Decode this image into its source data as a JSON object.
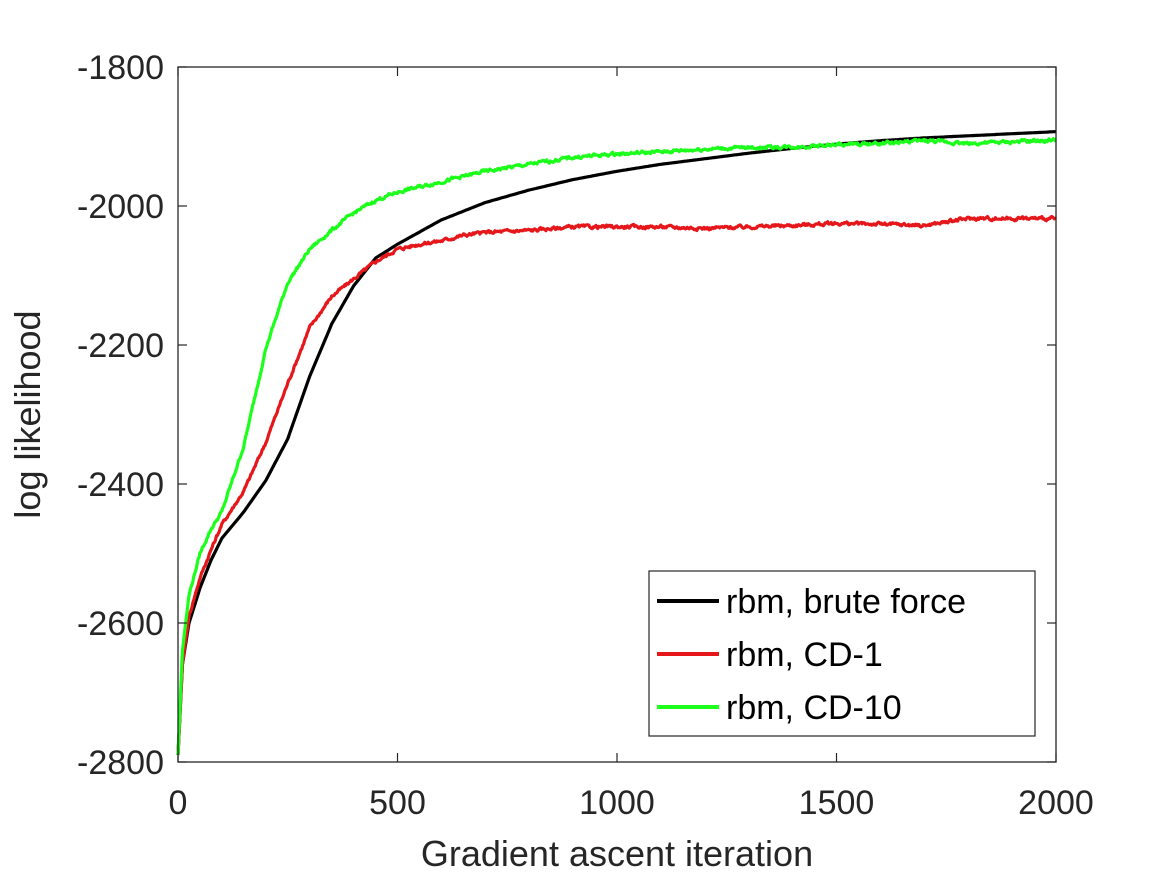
{
  "chart_data": {
    "type": "line",
    "title": "",
    "xlabel": "Gradient ascent iteration",
    "ylabel": "log likelihood",
    "xlim": [
      0,
      2000
    ],
    "ylim": [
      -2800,
      -1800
    ],
    "xticks": [
      0,
      500,
      1000,
      1500,
      2000
    ],
    "yticks": [
      -2800,
      -2600,
      -2400,
      -2200,
      -2000,
      -1800
    ],
    "xtick_labels": [
      "0",
      "500",
      "1000",
      "1500",
      "2000"
    ],
    "ytick_labels": [
      "-2800",
      "-2600",
      "-2400",
      "-2200",
      "-2000",
      "-1800"
    ],
    "grid": false,
    "legend": {
      "placement": "bottom-right"
    },
    "series": [
      {
        "name": "rbm, brute force",
        "color": "#000000",
        "noise": false,
        "points": [
          [
            0,
            -2790
          ],
          [
            10,
            -2660
          ],
          [
            25,
            -2600
          ],
          [
            50,
            -2550
          ],
          [
            75,
            -2510
          ],
          [
            100,
            -2478
          ],
          [
            150,
            -2440
          ],
          [
            200,
            -2395
          ],
          [
            250,
            -2335
          ],
          [
            300,
            -2245
          ],
          [
            350,
            -2170
          ],
          [
            400,
            -2115
          ],
          [
            450,
            -2075
          ],
          [
            500,
            -2055
          ],
          [
            600,
            -2020
          ],
          [
            700,
            -1995
          ],
          [
            800,
            -1977
          ],
          [
            900,
            -1962
          ],
          [
            1000,
            -1950
          ],
          [
            1100,
            -1940
          ],
          [
            1200,
            -1932
          ],
          [
            1300,
            -1924
          ],
          [
            1400,
            -1917
          ],
          [
            1500,
            -1911
          ],
          [
            1600,
            -1906
          ],
          [
            1700,
            -1902
          ],
          [
            1800,
            -1899
          ],
          [
            1900,
            -1896
          ],
          [
            2000,
            -1893
          ]
        ]
      },
      {
        "name": "rbm, CD-1",
        "color": "#e5171b",
        "noise": true,
        "points": [
          [
            0,
            -2790
          ],
          [
            10,
            -2660
          ],
          [
            25,
            -2590
          ],
          [
            50,
            -2535
          ],
          [
            75,
            -2495
          ],
          [
            100,
            -2458
          ],
          [
            150,
            -2410
          ],
          [
            200,
            -2340
          ],
          [
            250,
            -2255
          ],
          [
            300,
            -2175
          ],
          [
            350,
            -2130
          ],
          [
            400,
            -2105
          ],
          [
            450,
            -2080
          ],
          [
            500,
            -2062
          ],
          [
            550,
            -2055
          ],
          [
            600,
            -2050
          ],
          [
            650,
            -2042
          ],
          [
            700,
            -2038
          ],
          [
            800,
            -2035
          ],
          [
            900,
            -2030
          ],
          [
            1000,
            -2030
          ],
          [
            1100,
            -2030
          ],
          [
            1200,
            -2032
          ],
          [
            1300,
            -2030
          ],
          [
            1400,
            -2028
          ],
          [
            1500,
            -2025
          ],
          [
            1600,
            -2026
          ],
          [
            1700,
            -2028
          ],
          [
            1800,
            -2018
          ],
          [
            1900,
            -2018
          ],
          [
            2000,
            -2018
          ]
        ]
      },
      {
        "name": "rbm, CD-10",
        "color": "#1bff1b",
        "noise": true,
        "points": [
          [
            0,
            -2790
          ],
          [
            10,
            -2640
          ],
          [
            25,
            -2560
          ],
          [
            50,
            -2500
          ],
          [
            75,
            -2465
          ],
          [
            100,
            -2440
          ],
          [
            150,
            -2345
          ],
          [
            200,
            -2205
          ],
          [
            250,
            -2110
          ],
          [
            300,
            -2062
          ],
          [
            350,
            -2035
          ],
          [
            400,
            -2010
          ],
          [
            450,
            -1992
          ],
          [
            500,
            -1980
          ],
          [
            600,
            -1965
          ],
          [
            700,
            -1950
          ],
          [
            800,
            -1940
          ],
          [
            900,
            -1930
          ],
          [
            1000,
            -1925
          ],
          [
            1100,
            -1922
          ],
          [
            1200,
            -1918
          ],
          [
            1300,
            -1916
          ],
          [
            1400,
            -1915
          ],
          [
            1500,
            -1912
          ],
          [
            1600,
            -1910
          ],
          [
            1700,
            -1906
          ],
          [
            1800,
            -1910
          ],
          [
            1900,
            -1908
          ],
          [
            2000,
            -1905
          ]
        ]
      }
    ]
  }
}
